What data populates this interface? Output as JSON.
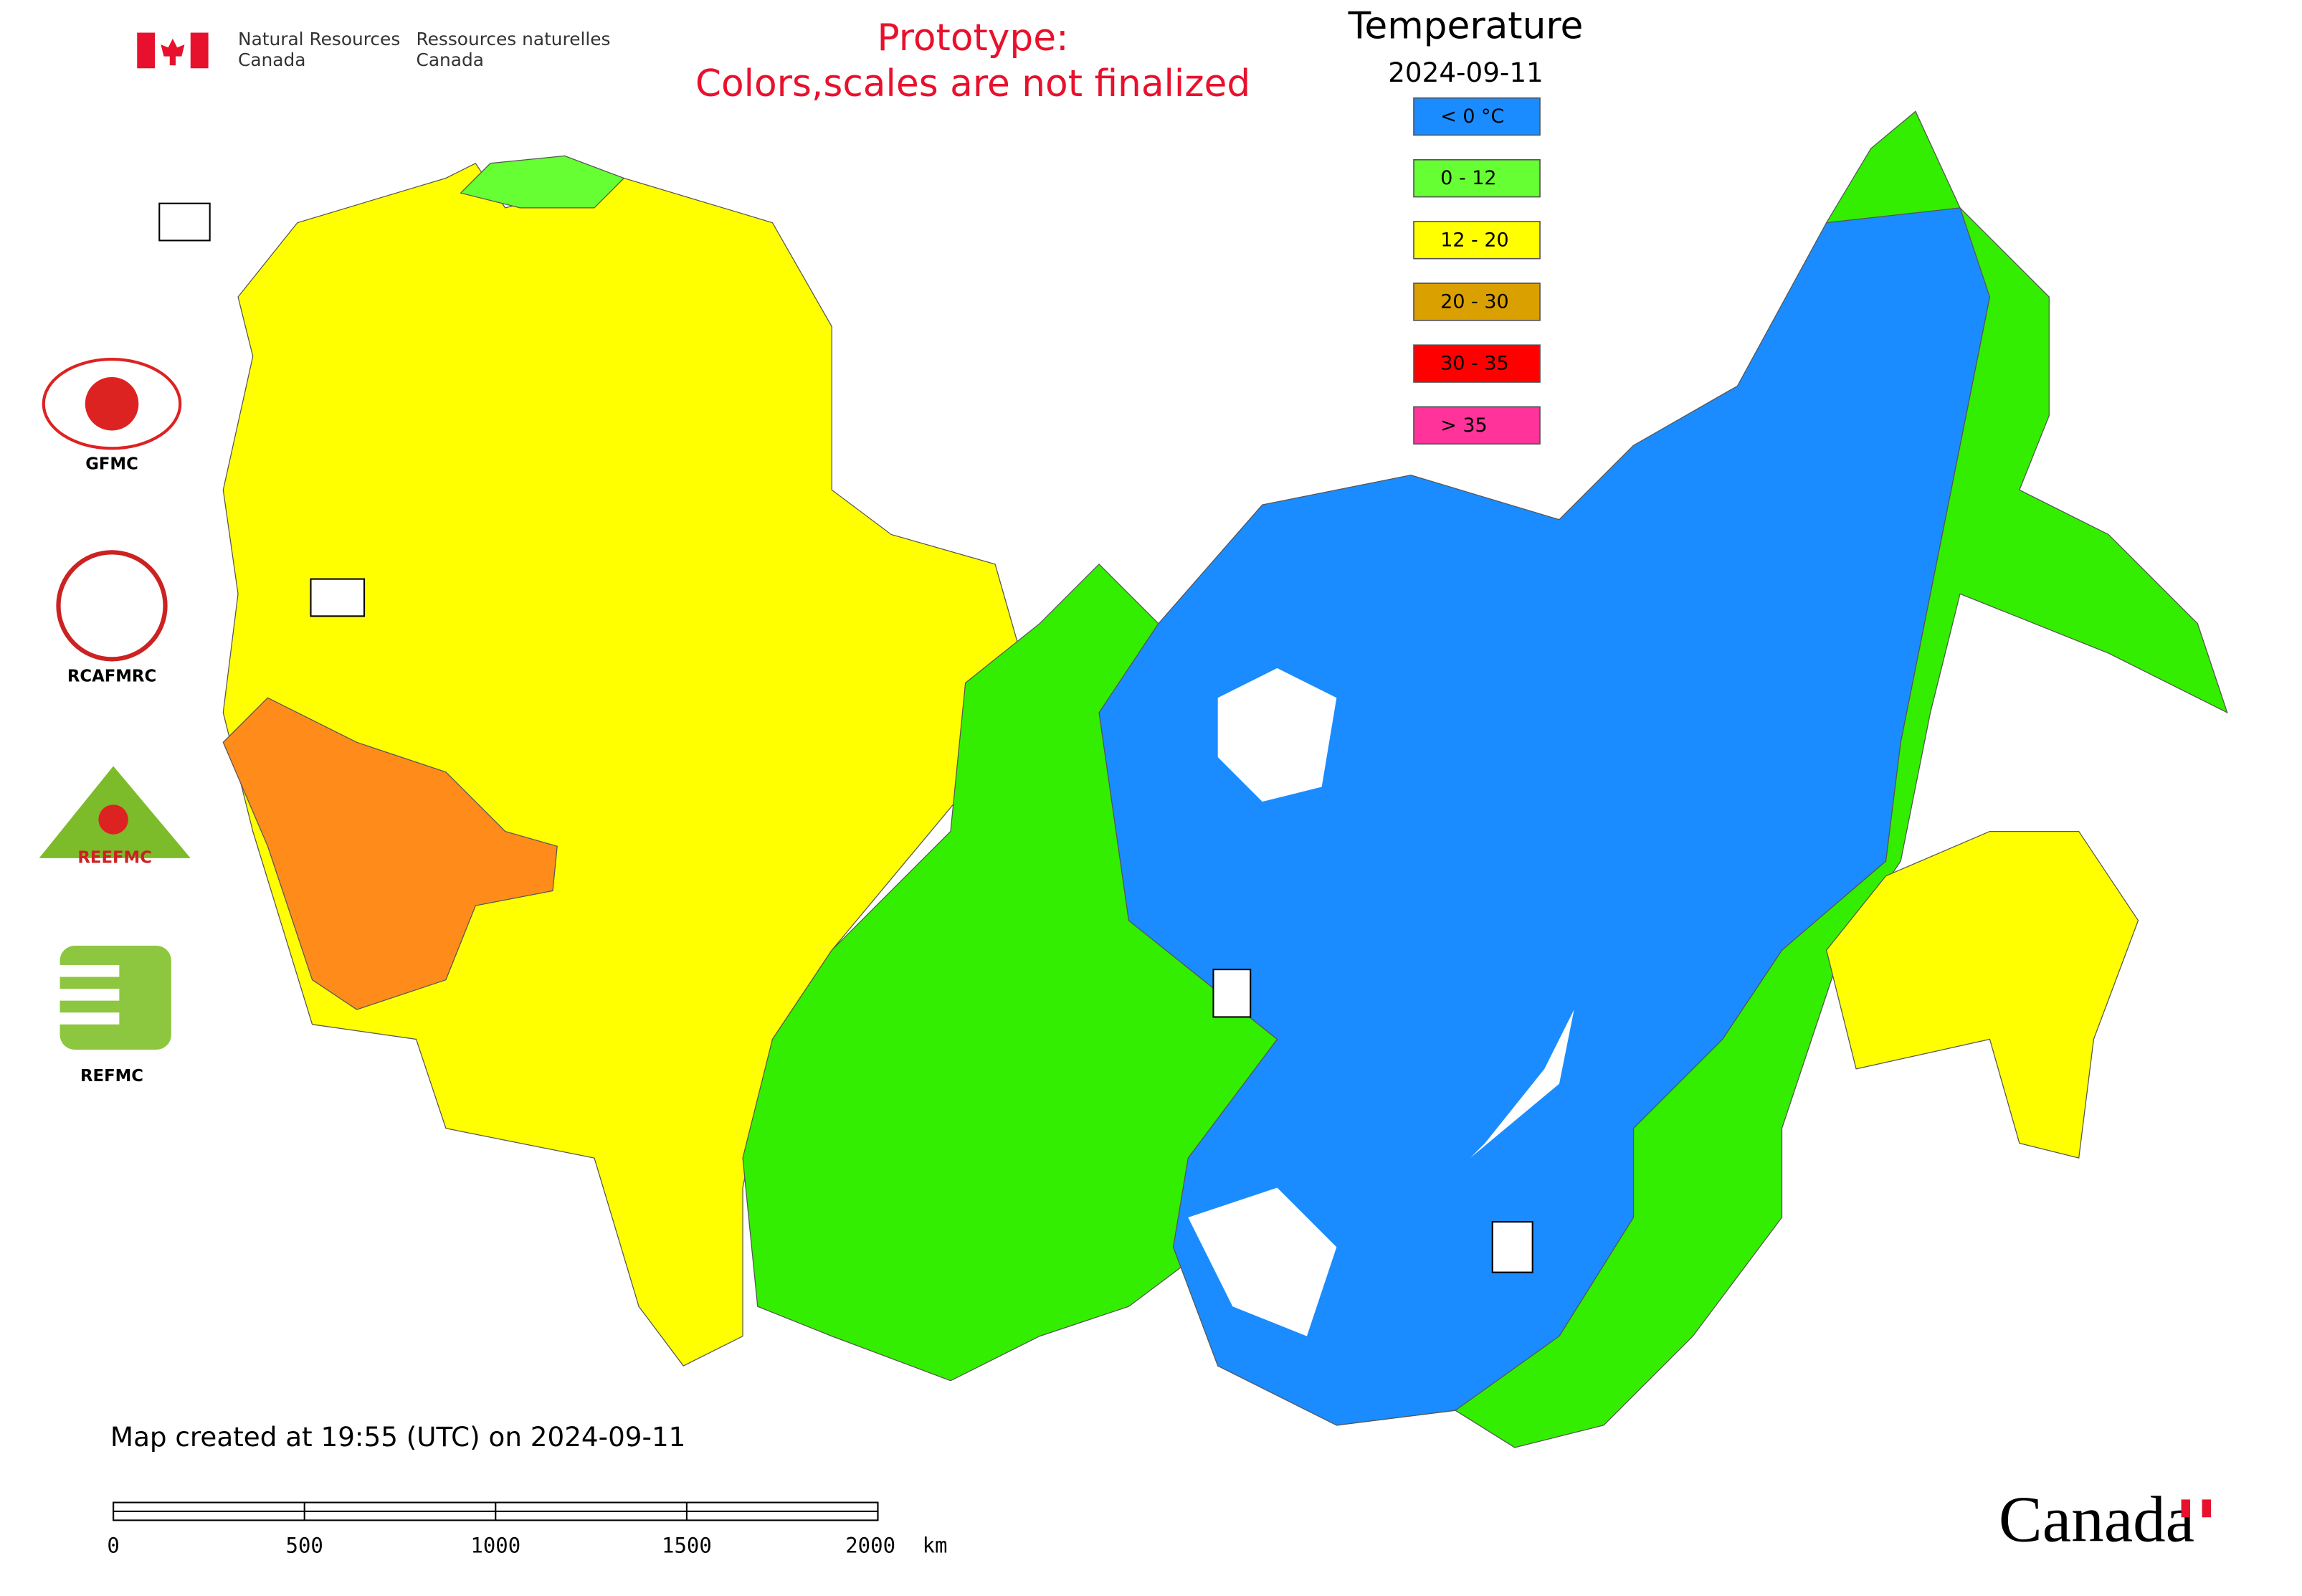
{
  "header": {
    "agency_en": [
      "Natural Resources",
      "Canada"
    ],
    "agency_fr": [
      "Ressources naturelles",
      "Canada"
    ],
    "notice": [
      "Prototype:",
      "Colors,scales are not finalized"
    ]
  },
  "legend": {
    "title": "Temperature",
    "date": "2024-09-11",
    "items": [
      {
        "label": "< 0 °C",
        "color": "#1a8cff"
      },
      {
        "label": "0 - 12",
        "color": "#66ff33"
      },
      {
        "label": "12 - 20",
        "color": "#ffff00"
      },
      {
        "label": "20 - 30",
        "color": "#d9a000"
      },
      {
        "label": "30 - 35",
        "color": "#ff0000"
      },
      {
        "label": "> 35",
        "color": "#ff3399"
      }
    ]
  },
  "logos": [
    "GFMC",
    "RCAFMRC",
    "REEFMC",
    "REFMC"
  ],
  "footer": {
    "created": "Map created at 19:55 (UTC) on 2024-09-11",
    "wordmark": "Canada"
  },
  "scale_bar": {
    "ticks": [
      0,
      500,
      1000,
      1500,
      2000
    ],
    "unit": "km"
  }
}
